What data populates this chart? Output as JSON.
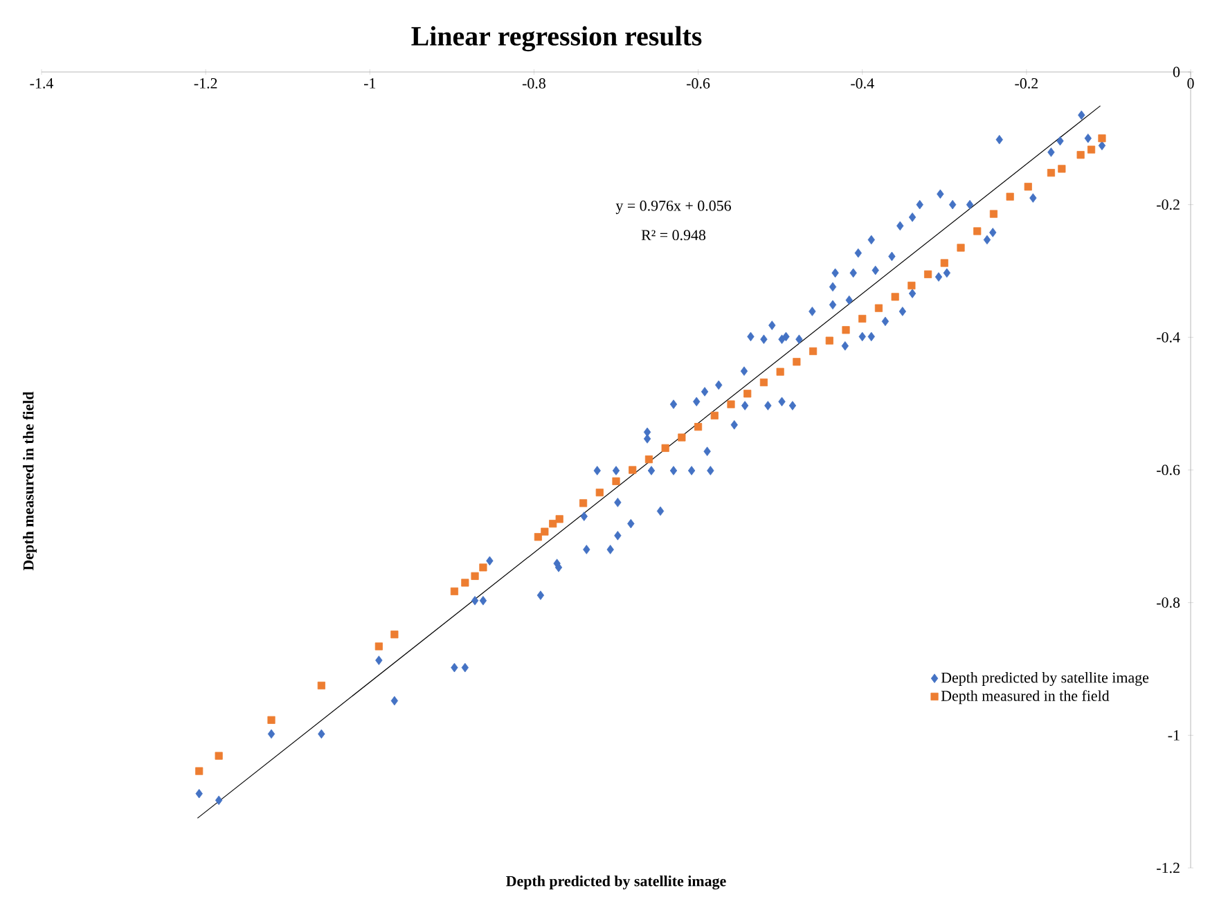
{
  "chart_data": {
    "type": "scatter",
    "title": "Linear regression results",
    "xlabel": "Depth predicted by satellite image",
    "ylabel": "Depth measured in the field",
    "annotations": [
      "y = 0.976x + 0.056",
      "R² = 0.948"
    ],
    "xlim": [
      -1.4,
      0
    ],
    "ylim": [
      -1.2,
      0
    ],
    "xticks": [
      -1.4,
      -1.2,
      -1,
      -0.8,
      -0.6,
      -0.4,
      -0.2,
      0
    ],
    "yticks": [
      -1.2,
      -1,
      -0.8,
      -0.6,
      -0.4,
      -0.2,
      0
    ],
    "grid": false,
    "legend": "bottom right",
    "series": [
      {
        "name": "Depth predicted by satellite image",
        "color": "#4472c4",
        "marker": "diamond",
        "x": [
          -1.208,
          -1.184,
          -1.12,
          -1.059,
          -0.989,
          -0.97,
          -0.897,
          -0.884,
          -0.872,
          -0.862,
          -0.854,
          -0.792,
          -0.772,
          -0.77,
          -0.736,
          -0.707,
          -0.698,
          -0.682,
          -0.698,
          -0.646,
          -0.739,
          -0.723,
          -0.7,
          -0.657,
          -0.63,
          -0.608,
          -0.585,
          -0.589,
          -0.662,
          -0.662,
          -0.556,
          -0.63,
          -0.602,
          -0.592,
          -0.575,
          -0.543,
          -0.515,
          -0.498,
          -0.485,
          -0.544,
          -0.52,
          -0.498,
          -0.477,
          -0.51,
          -0.461,
          -0.436,
          -0.436,
          -0.421,
          -0.233,
          -0.133,
          -0.108,
          -0.125,
          -0.159,
          -0.17,
          -0.192,
          -0.305,
          -0.33,
          -0.29,
          -0.269,
          -0.339,
          -0.354,
          -0.241,
          -0.248,
          -0.389,
          -0.405,
          -0.364,
          -0.433,
          -0.411,
          -0.384,
          -0.307,
          -0.297,
          -0.339,
          -0.416,
          -0.351,
          -0.372,
          -0.536,
          -0.493,
          -0.4,
          -0.389
        ],
        "values": [
          -1.088,
          -1.098,
          -0.998,
          -0.998,
          -0.887,
          -0.948,
          -0.898,
          -0.898,
          -0.797,
          -0.797,
          -0.737,
          -0.789,
          -0.741,
          -0.747,
          -0.72,
          -0.72,
          -0.699,
          -0.681,
          -0.649,
          -0.662,
          -0.67,
          -0.601,
          -0.601,
          -0.601,
          -0.601,
          -0.601,
          -0.601,
          -0.572,
          -0.543,
          -0.553,
          -0.532,
          -0.501,
          -0.497,
          -0.482,
          -0.472,
          -0.503,
          -0.503,
          -0.497,
          -0.503,
          -0.451,
          -0.403,
          -0.403,
          -0.403,
          -0.382,
          -0.361,
          -0.351,
          -0.324,
          -0.413,
          -0.102,
          -0.065,
          -0.111,
          -0.1,
          -0.104,
          -0.121,
          -0.19,
          -0.184,
          -0.2,
          -0.2,
          -0.2,
          -0.219,
          -0.232,
          -0.242,
          -0.253,
          -0.253,
          -0.273,
          -0.278,
          -0.303,
          -0.303,
          -0.299,
          -0.309,
          -0.303,
          -0.334,
          -0.344,
          -0.361,
          -0.376,
          -0.399,
          -0.399,
          -0.399,
          -0.399
        ]
      },
      {
        "name": "Depth measured in the field",
        "color": "#ed7d31",
        "marker": "square",
        "x": [
          -1.208,
          -1.184,
          -1.12,
          -1.059,
          -0.989,
          -0.97,
          -0.897,
          -0.884,
          -0.872,
          -0.862,
          -0.795,
          -0.787,
          -0.777,
          -0.769,
          -0.74,
          -0.72,
          -0.7,
          -0.68,
          -0.66,
          -0.64,
          -0.62,
          -0.6,
          -0.58,
          -0.56,
          -0.54,
          -0.52,
          -0.5,
          -0.48,
          -0.46,
          -0.44,
          -0.42,
          -0.4,
          -0.38,
          -0.36,
          -0.34,
          -0.32,
          -0.3,
          -0.28,
          -0.26,
          -0.24,
          -0.22,
          -0.198,
          -0.17,
          -0.157,
          -0.134,
          -0.121,
          -0.108
        ],
        "values": [
          -1.054,
          -1.031,
          -0.977,
          -0.925,
          -0.866,
          -0.848,
          -0.783,
          -0.77,
          -0.76,
          -0.747,
          -0.701,
          -0.693,
          -0.681,
          -0.674,
          -0.65,
          -0.634,
          -0.617,
          -0.6,
          -0.584,
          -0.567,
          -0.551,
          -0.535,
          -0.518,
          -0.501,
          -0.485,
          -0.468,
          -0.452,
          -0.437,
          -0.421,
          -0.405,
          -0.389,
          -0.372,
          -0.356,
          -0.339,
          -0.322,
          -0.305,
          -0.288,
          -0.265,
          -0.24,
          -0.214,
          -0.188,
          -0.173,
          -0.152,
          -0.146,
          -0.125,
          -0.117,
          -0.1
        ]
      },
      {
        "type": "line",
        "color": "#000000",
        "line_style": "solid",
        "x": [
          -1.21,
          -0.11
        ],
        "values": [
          -1.125,
          -0.051
        ]
      }
    ]
  }
}
